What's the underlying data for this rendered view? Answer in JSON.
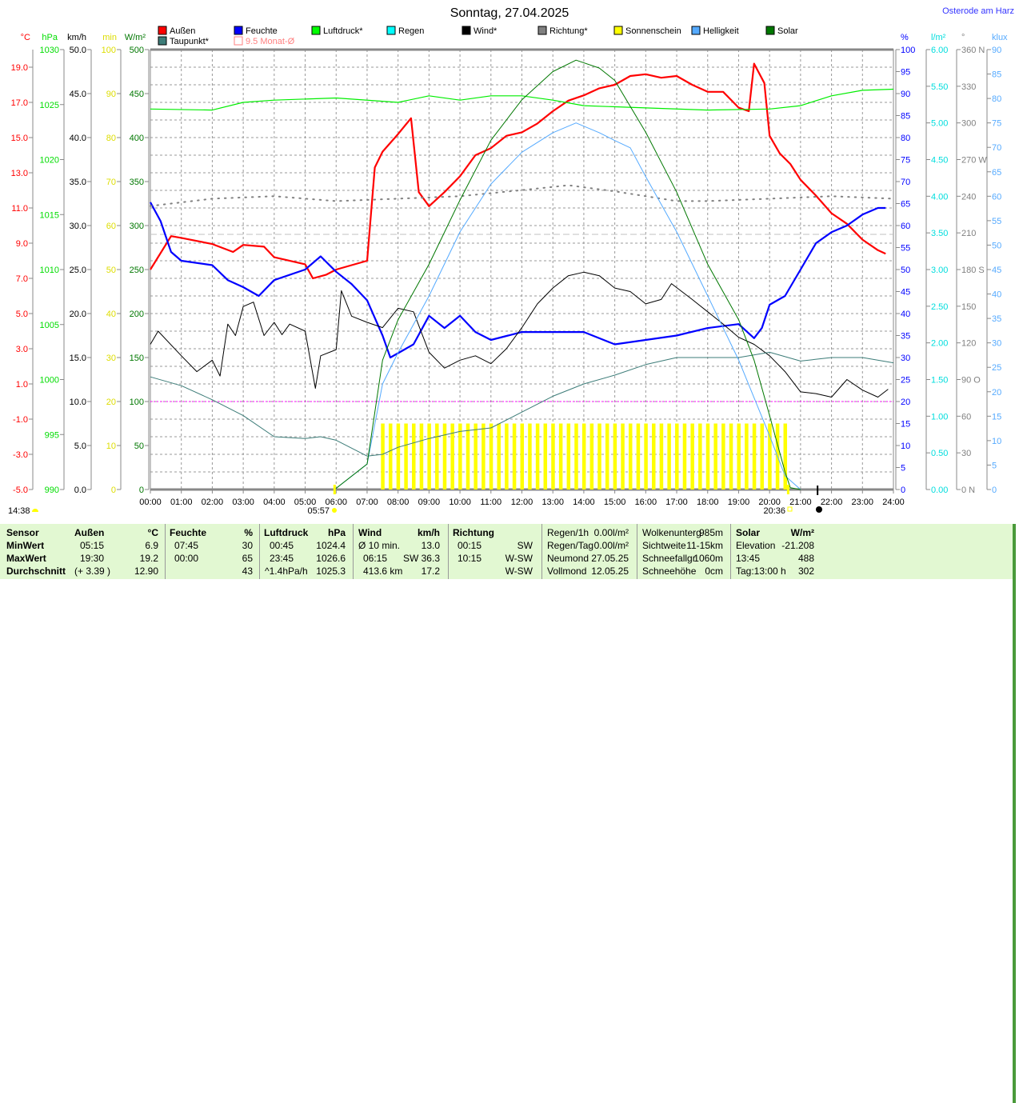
{
  "title": "Sonntag, 27.04.2025",
  "location": "Osterode am Harz",
  "colors": {
    "aussen": "#ff0000",
    "feuchte": "#0000ff",
    "luftdruck": "#00ff00",
    "regen": "#00ffff",
    "wind": "#000000",
    "richtung": "#808080",
    "sonnenschein": "#ffff00",
    "helligkeit": "#55aaff",
    "solar": "#007700",
    "taupunkt": "#3c7c78",
    "monat": "#ff8080",
    "table_bg": "#e2f8d2"
  },
  "legend": [
    {
      "label": "Außen",
      "color": "#ff0000"
    },
    {
      "label": "Feuchte",
      "color": "#0000ff"
    },
    {
      "label": "Luftdruck*",
      "color": "#00ff00"
    },
    {
      "label": "Regen",
      "color": "#00ffff"
    },
    {
      "label": "Wind*",
      "color": "#000000"
    },
    {
      "label": "Richtung*",
      "color": "#808080"
    },
    {
      "label": "Sonnenschein",
      "color": "#ffff00"
    },
    {
      "label": "Helligkeit",
      "color": "#55aaff"
    },
    {
      "label": "Solar",
      "color": "#007700"
    },
    {
      "label": "Taupunkt*",
      "color": "#3c7c78"
    },
    {
      "label": "9.5 Monat-Ø",
      "color": "#ff8080",
      "outline": true
    }
  ],
  "chart_data": {
    "type": "line",
    "title": "Sonntag, 27.04.2025",
    "x_ticks": [
      "00:00",
      "01:00",
      "02:00",
      "03:00",
      "04:00",
      "05:00",
      "06:00",
      "07:00",
      "08:00",
      "09:00",
      "10:00",
      "11:00",
      "12:00",
      "13:00",
      "14:00",
      "15:00",
      "16:00",
      "17:00",
      "18:00",
      "19:00",
      "20:00",
      "21:00",
      "22:00",
      "23:00",
      "24:00"
    ],
    "xlim_hours": [
      0,
      24
    ],
    "grid": true,
    "left_axes": [
      {
        "unit": "°C",
        "color": "#ff0000",
        "range": [
          -5,
          20
        ],
        "ticks": [
          "19.0",
          "17.0",
          "15.0",
          "13.0",
          "11.0",
          "9.0",
          "7.0",
          "5.0",
          "3.0",
          "1.0",
          "-1.0",
          "-3.0",
          "-5.0"
        ],
        "tick_values": [
          19,
          17,
          15,
          13,
          11,
          9,
          7,
          5,
          3,
          1,
          -1,
          -3,
          -5
        ]
      },
      {
        "unit": "hPa",
        "color": "#00dd00",
        "range": [
          990,
          1030
        ],
        "ticks": [
          "1030",
          "1025",
          "1020",
          "1015",
          "1010",
          "1005",
          "1000",
          "995",
          "990"
        ]
      },
      {
        "unit": "km/h",
        "color": "#000000",
        "range": [
          0,
          50
        ],
        "ticks": [
          "50.0",
          "45.0",
          "40.0",
          "35.0",
          "30.0",
          "25.0",
          "20.0",
          "15.0",
          "10.0",
          "5.0",
          "0.0"
        ]
      },
      {
        "unit": "min",
        "color": "#dddd00",
        "range": [
          0,
          100
        ],
        "ticks": [
          "100",
          "90",
          "80",
          "70",
          "60",
          "50",
          "40",
          "30",
          "20",
          "10",
          "0"
        ]
      },
      {
        "unit": "W/m²",
        "color": "#007700",
        "range": [
          0,
          500
        ],
        "ticks": [
          "500",
          "450",
          "400",
          "350",
          "300",
          "250",
          "200",
          "150",
          "100",
          "50",
          "0"
        ]
      }
    ],
    "right_axes": [
      {
        "unit": "%",
        "color": "#0000ff",
        "range": [
          0,
          100
        ],
        "ticks": [
          "100",
          "95",
          "90",
          "85",
          "80",
          "75",
          "70",
          "65",
          "60",
          "55",
          "50",
          "45",
          "40",
          "35",
          "30",
          "25",
          "20",
          "15",
          "10",
          "5",
          "0"
        ]
      },
      {
        "unit": "l/m²",
        "color": "#00dddd",
        "range": [
          0,
          6
        ],
        "ticks": [
          "6.00",
          "5.50",
          "5.00",
          "4.50",
          "4.00",
          "3.50",
          "3.00",
          "2.50",
          "2.00",
          "1.50",
          "1.00",
          "0.50",
          "0.00"
        ]
      },
      {
        "unit": "°",
        "color": "#808080",
        "range": [
          0,
          360
        ],
        "ticks": [
          "360 N",
          "330",
          "300",
          "270 W",
          "240",
          "210",
          "180 S",
          "150",
          "120",
          "90 O",
          "60",
          "30",
          "0 N"
        ]
      },
      {
        "unit": "klux",
        "color": "#55aaff",
        "range": [
          0,
          90
        ],
        "ticks": [
          "90",
          "85",
          "80",
          "75",
          "70",
          "65",
          "60",
          "55",
          "50",
          "45",
          "40",
          "35",
          "30",
          "25",
          "20",
          "15",
          "10",
          "5",
          "0"
        ]
      }
    ],
    "series": [
      {
        "name": "Außen",
        "axis": "°C",
        "color": "#ff0000",
        "width": 2.2,
        "x": [
          0,
          0.67,
          1,
          2,
          2.67,
          3,
          3.67,
          4,
          5,
          5.25,
          5.67,
          6,
          7,
          7.25,
          7.5,
          8,
          8.42,
          8.67,
          9,
          9.5,
          10,
          10.5,
          11,
          11.5,
          12,
          12.5,
          13,
          13.5,
          14,
          14.5,
          15,
          15.5,
          16,
          16.5,
          17,
          17.5,
          18,
          18.5,
          19,
          19.33,
          19.5,
          19.83,
          20,
          20.33,
          20.67,
          21,
          21.5,
          22,
          22.5,
          23,
          23.5,
          23.75
        ],
        "y": [
          7.5,
          9.4,
          9.3,
          8.95,
          8.5,
          8.9,
          8.8,
          8.2,
          7.8,
          7.0,
          7.2,
          7.5,
          8.0,
          13.3,
          14.2,
          15.2,
          16.1,
          11.9,
          11.1,
          11.9,
          12.8,
          14.0,
          14.4,
          15.1,
          15.3,
          15.8,
          16.5,
          17.1,
          17.4,
          17.8,
          18.0,
          18.5,
          18.6,
          18.4,
          18.5,
          18.0,
          17.6,
          17.6,
          16.7,
          16.5,
          19.2,
          18.1,
          15.1,
          14.1,
          13.5,
          12.6,
          11.7,
          10.7,
          10.1,
          9.2,
          8.6,
          8.4
        ]
      },
      {
        "name": "Feuchte",
        "axis": "%",
        "color": "#0000ff",
        "width": 2.2,
        "x": [
          0,
          0.33,
          0.67,
          1,
          2,
          2.5,
          3,
          3.5,
          4,
          5,
          5.5,
          6,
          6.5,
          7,
          7.5,
          7.75,
          8,
          8.5,
          9,
          9.5,
          10,
          10.5,
          11,
          12,
          13,
          14,
          15,
          16,
          17,
          18,
          19,
          19.5,
          19.75,
          20,
          20.5,
          21,
          21.5,
          22,
          22.5,
          23,
          23.5,
          23.75
        ],
        "y": [
          65.3,
          61,
          54,
          52,
          51,
          47.6,
          46,
          44,
          47.6,
          50,
          53,
          49.5,
          46.7,
          43,
          35,
          30,
          31,
          33,
          39.5,
          36.7,
          39.5,
          35.8,
          34,
          35.8,
          35.8,
          35.8,
          33,
          34,
          35,
          36.7,
          37.6,
          34.4,
          36.7,
          42,
          44,
          50,
          56,
          58.5,
          60,
          62.5,
          64,
          64
        ]
      },
      {
        "name": "Luftdruck",
        "axis": "hPa",
        "color": "#00ee00",
        "width": 1.2,
        "x": [
          0,
          2,
          3,
          4,
          6,
          8,
          9,
          10,
          11,
          12,
          13,
          14,
          16,
          18,
          20,
          21,
          22,
          23,
          24
        ],
        "y": [
          1024.6,
          1024.5,
          1025.2,
          1025.4,
          1025.6,
          1025.2,
          1025.8,
          1025.4,
          1025.8,
          1025.8,
          1025.4,
          1024.9,
          1024.7,
          1024.5,
          1024.6,
          1024.9,
          1025.8,
          1026.3,
          1026.4
        ]
      },
      {
        "name": "Wind",
        "axis": "km/h",
        "color": "#000000",
        "width": 1,
        "x": [
          0,
          0.25,
          1,
          1.5,
          2,
          2.25,
          2.5,
          2.75,
          3,
          3.33,
          3.67,
          4,
          4.25,
          4.5,
          5,
          5.33,
          5.5,
          6,
          6.17,
          6.5,
          7,
          7.5,
          8,
          8.5,
          9,
          9.5,
          10,
          10.5,
          11,
          11.5,
          12,
          12.5,
          13,
          13.5,
          14,
          14.5,
          15,
          15.5,
          16,
          16.5,
          16.83,
          17.5,
          18,
          18.5,
          19,
          19.5,
          20,
          20.5,
          21,
          21.5,
          22,
          22.5,
          23,
          23.5,
          23.83
        ],
        "y": [
          16.5,
          18,
          15.2,
          13.4,
          14.7,
          12.9,
          18.8,
          17.5,
          20.8,
          21.3,
          17.5,
          19,
          17.6,
          18.8,
          18,
          11.5,
          15.2,
          15.9,
          22.6,
          19.7,
          19,
          18.4,
          20.6,
          20.2,
          15.6,
          13.8,
          14.7,
          15.2,
          14.3,
          16,
          18.4,
          21.1,
          22.9,
          24.3,
          24.7,
          24.3,
          22.9,
          22.5,
          21.1,
          21.6,
          23.4,
          21.6,
          20.2,
          18.8,
          17.3,
          16.5,
          15.2,
          13.4,
          11.1,
          10.9,
          10.5,
          12.5,
          11.3,
          10.5,
          11.4
        ]
      },
      {
        "name": "Richtung",
        "axis": "°",
        "color": "#808080",
        "width": 2,
        "dotted": true,
        "x": [
          0,
          2,
          4,
          6,
          8,
          10,
          12,
          13.5,
          15,
          16,
          17,
          18,
          20,
          22,
          24
        ],
        "y": [
          232,
          238,
          240,
          236,
          238,
          240,
          245,
          249,
          244,
          240,
          236,
          236,
          238,
          240,
          238
        ]
      },
      {
        "name": "Taupunkt",
        "axis": "°C",
        "color": "#3c7c78",
        "width": 1,
        "x": [
          0,
          1,
          2,
          3,
          4,
          5,
          5.5,
          6,
          7,
          7.5,
          8,
          9,
          10,
          11,
          12,
          13,
          14,
          15,
          16,
          17,
          18,
          19,
          20,
          21,
          22,
          23,
          24
        ],
        "y": [
          1.4,
          0.9,
          0.1,
          -0.8,
          -2.0,
          -2.1,
          -2.0,
          -2.2,
          -3.1,
          -3.0,
          -2.6,
          -2.1,
          -1.7,
          -1.5,
          -0.6,
          0.3,
          1.0,
          1.5,
          2.1,
          2.5,
          2.5,
          2.5,
          2.8,
          2.3,
          2.5,
          2.5,
          2.2
        ]
      },
      {
        "name": "Helligkeit",
        "axis": "klux",
        "color": "#55aaff",
        "width": 1,
        "x": [
          5.95,
          7,
          7.5,
          8,
          9,
          10,
          11,
          12,
          13,
          13.75,
          14.5,
          15,
          15.5,
          16,
          17,
          18,
          19,
          20,
          20.5,
          21
        ],
        "y": [
          0,
          5.2,
          21.6,
          28,
          39.6,
          52.7,
          62.5,
          69,
          73,
          75,
          73,
          71.4,
          69.9,
          64,
          52.7,
          39.6,
          26.5,
          11,
          2.8,
          0
        ]
      },
      {
        "name": "Solar",
        "axis": "W/m²",
        "color": "#007700",
        "width": 1,
        "x": [
          5.95,
          7,
          7.5,
          8,
          9,
          10,
          11,
          12,
          13,
          13.75,
          14.5,
          15,
          16,
          17,
          18,
          19,
          19.5,
          20,
          20.5,
          20.67,
          21
        ],
        "y": [
          0,
          29,
          147,
          193,
          256,
          329,
          397,
          443,
          475,
          488,
          479,
          465,
          406,
          338,
          256,
          193,
          147,
          84,
          20,
          2,
          0
        ]
      }
    ],
    "sonnenschein": {
      "axis": "min",
      "start_hour": 7.5,
      "end_hour": 20.5,
      "interval_hours": 0.25,
      "value": 15
    },
    "reference_lines": [
      {
        "name": "Monat-Ø",
        "axis": "°C",
        "value": 9.5,
        "color": "#c0c0c0"
      },
      {
        "name": "Wind-Grenze",
        "axis": "km/h",
        "value": 10,
        "color": "#ff00ff"
      }
    ],
    "daylength": "14:38",
    "sunrise": "05:57",
    "sunset": "20:36"
  },
  "table": {
    "sensor": {
      "h": "Sensor",
      "r1": "MinWert",
      "r2": "MaxWert",
      "r3": "Durchschnitt"
    },
    "aussen": {
      "h": "Außen",
      "u": "°C",
      "r1t": "05:15",
      "r1v": "6.9",
      "r2t": "19:30",
      "r2v": "19.2",
      "r3t": "(+ 3.39 )",
      "r3v": "12.90"
    },
    "feuchte": {
      "h": "Feuchte",
      "u": "%",
      "r1t": "07:45",
      "r1v": "30",
      "r2t": "00:00",
      "r2v": "65",
      "r3v": "43"
    },
    "luftdruck": {
      "h": "Luftdruck",
      "u": "hPa",
      "r1t": "00:45",
      "r1v": "1024.4",
      "r2t": "23:45",
      "r2v": "1026.6",
      "r3t": "^1.4hPa/h",
      "r3v": "1025.3"
    },
    "wind": {
      "h": "Wind",
      "u": "km/h",
      "r1t": "Ø 10 min.",
      "r1v": "13.0",
      "r2t": "06:15",
      "r2v": "SW 36.3",
      "r3t": "413.6 km",
      "r3v": "17.2"
    },
    "richtung": {
      "h": "Richtung",
      "r1t": "00:15",
      "r1v": "SW",
      "r2t": "10:15",
      "r2v": "W-SW",
      "r3v": "W-SW"
    },
    "regen": [
      [
        "Regen/1h",
        "0.00l/m²"
      ],
      [
        "Regen/Tag",
        "0.00l/m²"
      ],
      [
        "Neumond",
        "27.05.25"
      ],
      [
        "Vollmond",
        "12.05.25"
      ]
    ],
    "wolken": [
      [
        "Wolkenunterg",
        "985m"
      ],
      [
        "Sichtweite",
        "11-15km"
      ],
      [
        "Schneefallgr",
        "1060m"
      ],
      [
        "Schneehöhe",
        "0cm"
      ]
    ],
    "solar": {
      "h": "Solar",
      "u": "W/m²",
      "rows": [
        [
          "Elevation",
          "-21.208"
        ],
        [
          "13:45",
          "488"
        ],
        [
          "Tag:13:00 h",
          "302"
        ]
      ]
    }
  }
}
